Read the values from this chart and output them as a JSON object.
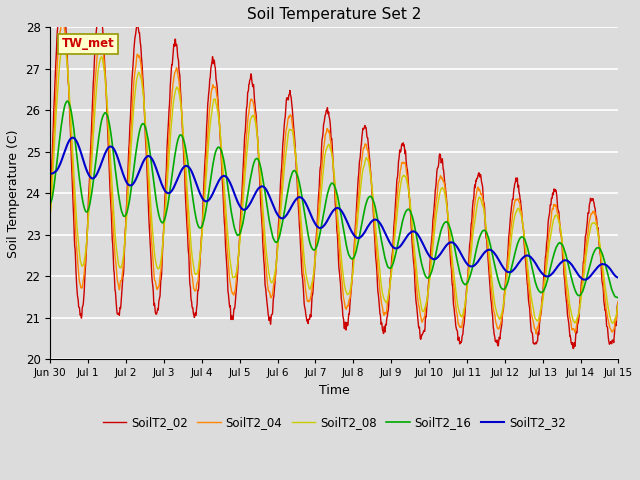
{
  "title": "Soil Temperature Set 2",
  "xlabel": "Time",
  "ylabel": "Soil Temperature (C)",
  "ylim": [
    20.0,
    28.0
  ],
  "yticks": [
    20.0,
    21.0,
    22.0,
    23.0,
    24.0,
    25.0,
    26.0,
    27.0,
    28.0
  ],
  "series_names": [
    "SoilT2_02",
    "SoilT2_04",
    "SoilT2_08",
    "SoilT2_16",
    "SoilT2_32"
  ],
  "series_colors": [
    "#cc0000",
    "#ff8800",
    "#cccc00",
    "#00aa00",
    "#0000cc"
  ],
  "series_linewidths": [
    1.0,
    1.0,
    1.0,
    1.2,
    1.5
  ],
  "annotation_text": "TW_met",
  "bg_color": "#dcdcdc",
  "plot_bg_color": "#dcdcdc",
  "xtick_labels": [
    "Jun 30",
    "Jul 1",
    "Jul 2",
    "Jul 3",
    "Jul 4",
    "Jul 5",
    "Jul 6",
    "Jul 7",
    "Jul 8",
    "Jul 9",
    "Jul 10",
    "Jul 11",
    "Jul 12",
    "Jul 13",
    "Jul 14",
    "Jul 15"
  ],
  "num_points": 1440
}
